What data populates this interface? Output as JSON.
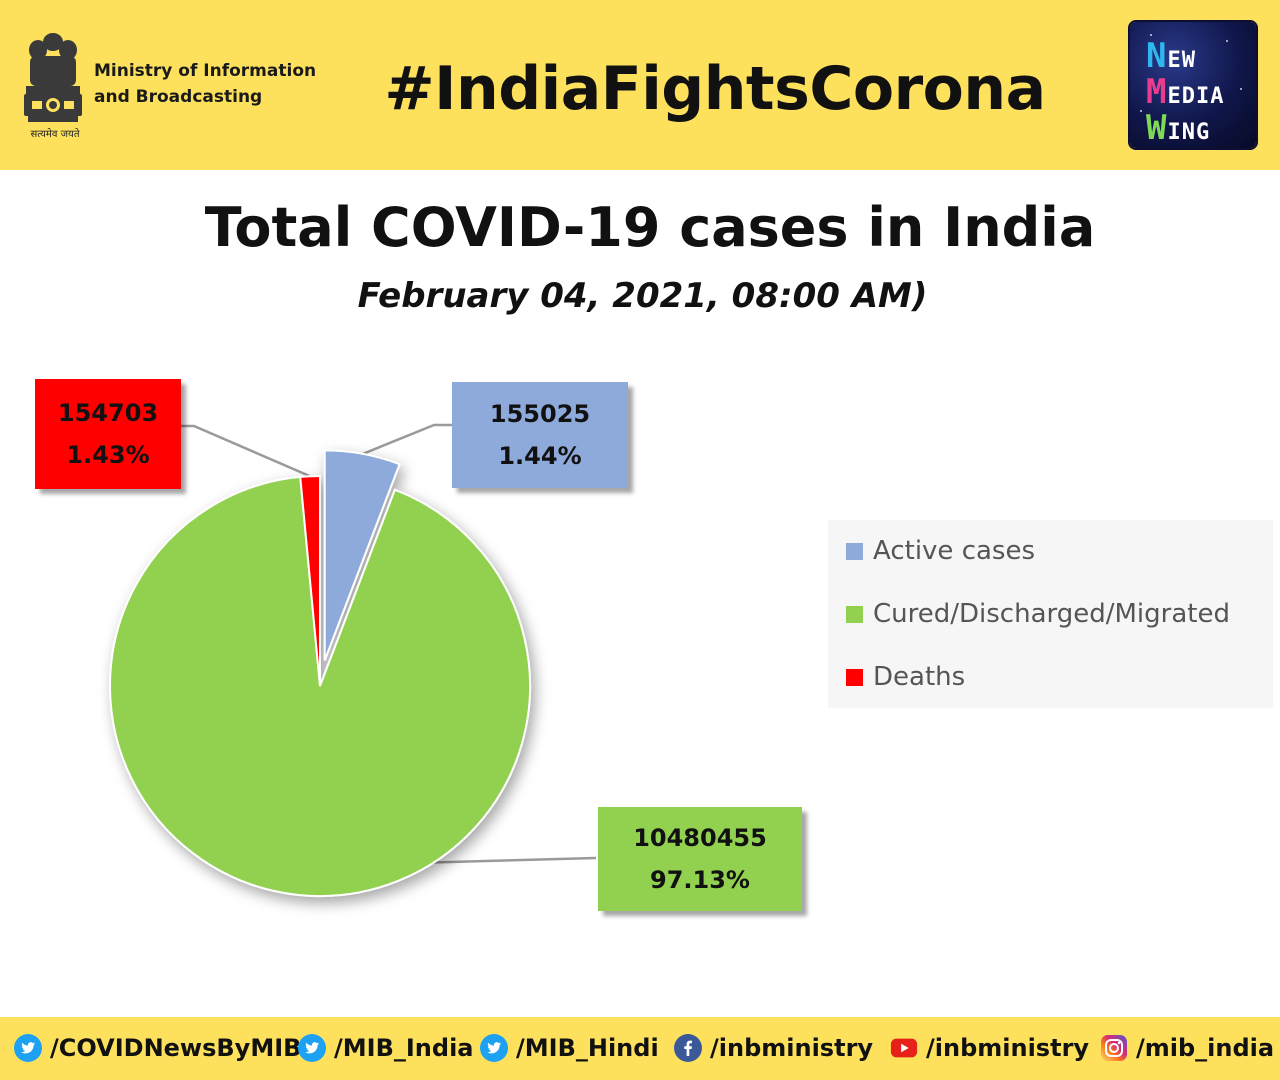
{
  "header": {
    "ministry_line1": "Ministry of Information",
    "ministry_line2": "and Broadcasting",
    "motto": "सत्यमेव जयते",
    "hashtag": "#IndiaFightsCorona",
    "logo_line1": "NEW",
    "logo_line2": "MEDIA",
    "logo_line3": "WING"
  },
  "chart_data": {
    "type": "pie",
    "title": "Total COVID-19 cases in India",
    "subtitle": "February 04, 2021, 08:00 AM)",
    "slices": [
      {
        "label": "Active cases",
        "value": 155025,
        "percent": "1.44%",
        "value_text": "155025",
        "color": "#8eaadb",
        "exploded": true
      },
      {
        "label": "Cured/Discharged/Migrated",
        "value": 10480455,
        "percent": "97.13%",
        "value_text": "10480455",
        "color": "#92d050",
        "exploded": false
      },
      {
        "label": "Deaths",
        "value": 154703,
        "percent": "1.43%",
        "value_text": "154703",
        "color": "#ff0000",
        "exploded": false
      }
    ],
    "legend": [
      "Active cases",
      "Cured/Discharged/Migrated",
      "Deaths"
    ],
    "legend_position": "right"
  },
  "footer": {
    "links": [
      {
        "icon": "twitter-icon",
        "text": "/COVIDNewsByMIB",
        "color": "#1da1f2"
      },
      {
        "icon": "twitter-icon",
        "text": "/MIB_India",
        "color": "#1da1f2"
      },
      {
        "icon": "twitter-icon",
        "text": "/MIB_Hindi",
        "color": "#1da1f2"
      },
      {
        "icon": "facebook-icon",
        "text": "/inbministry",
        "color": "#3b5998"
      },
      {
        "icon": "youtube-icon",
        "text": "/inbministry",
        "color": "#e62117"
      },
      {
        "icon": "instagram-icon",
        "text": "/mib_india",
        "color": "#c13584"
      }
    ]
  }
}
